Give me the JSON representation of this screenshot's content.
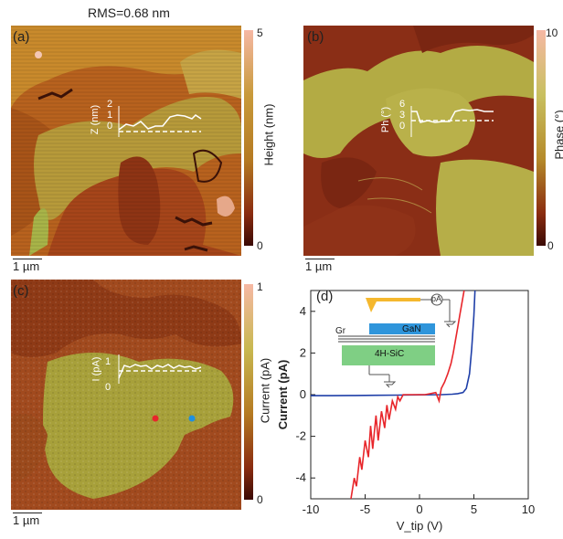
{
  "figure": {
    "rms_label": "RMS=0.68 nm",
    "panels": {
      "a": {
        "label": "(a)",
        "colorbar": {
          "title": "Height (nm)",
          "max": "5",
          "min": "0"
        },
        "profile": {
          "axis_label": "Z (nm)",
          "ticks": [
            "2",
            "1",
            "0"
          ]
        },
        "scalebar": "1 µm"
      },
      "b": {
        "label": "(b)",
        "colorbar": {
          "title": "Phase (°)",
          "max": "10",
          "min": "0"
        },
        "profile": {
          "axis_label": "Ph (°)",
          "ticks": [
            "6",
            "3",
            "0"
          ]
        },
        "scalebar": "1 µm"
      },
      "c": {
        "label": "(c)",
        "colorbar": {
          "title": "Current (pA)",
          "max": "1",
          "min": "0"
        },
        "profile": {
          "axis_label": "I (pA)",
          "ticks": [
            "1",
            "0"
          ]
        },
        "scalebar": "1 µm"
      },
      "d": {
        "label": "(d)",
        "schematic": {
          "layers": [
            "Gr",
            "GaN",
            "4H-SiC"
          ],
          "meter": "pA"
        }
      }
    },
    "colors": {
      "red_series": "#e8262b",
      "blue_series": "#1f3fa8",
      "markers": [
        "#e8262b",
        "#1e90e0"
      ]
    }
  },
  "chart_data": {
    "type": "line",
    "title": "",
    "xlabel": "V_tip (V)",
    "ylabel": "Current (pA)",
    "xlim": [
      -10,
      10
    ],
    "ylim": [
      -5,
      5
    ],
    "xticks": [
      "-10",
      "-5",
      "0",
      "5",
      "10"
    ],
    "yticks": [
      "4",
      "2",
      "0",
      "-2",
      "-4"
    ],
    "series": [
      {
        "color": "#1f3fa8",
        "x": [
          -10,
          -8,
          -6,
          -4,
          -2,
          0,
          2,
          3,
          3.5,
          4,
          4.3,
          4.6,
          4.8,
          5.0,
          5.1
        ],
        "y": [
          -0.05,
          -0.05,
          -0.04,
          -0.03,
          -0.02,
          -0.01,
          0.0,
          0.02,
          0.05,
          0.1,
          0.3,
          1.0,
          2.2,
          3.8,
          5.0
        ]
      },
      {
        "color": "#e8262b",
        "x": [
          -6.3,
          -6.0,
          -5.8,
          -5.5,
          -5.3,
          -5.0,
          -4.7,
          -4.5,
          -4.3,
          -4.0,
          -3.8,
          -3.5,
          -3.2,
          -3.0,
          -2.8,
          -2.5,
          -2.2,
          -2.0,
          -1.8,
          -1.5,
          -1.0,
          -0.5,
          0,
          0.5,
          1.0,
          1.5,
          1.8,
          2.0,
          2.3,
          2.6,
          2.9,
          3.1,
          3.3,
          3.5,
          3.7,
          3.9,
          4.1
        ],
        "y": [
          -5.0,
          -4.0,
          -4.4,
          -3.0,
          -3.6,
          -2.2,
          -3.0,
          -1.5,
          -2.6,
          -1.0,
          -2.2,
          -0.8,
          -1.6,
          -0.5,
          -1.2,
          -0.3,
          -0.7,
          -0.1,
          -0.3,
          0.0,
          0.0,
          0.0,
          0.0,
          0.0,
          0.05,
          0.1,
          -0.3,
          0.3,
          0.6,
          1.0,
          1.5,
          2.0,
          2.6,
          3.2,
          3.8,
          4.4,
          5.0
        ]
      }
    ]
  }
}
